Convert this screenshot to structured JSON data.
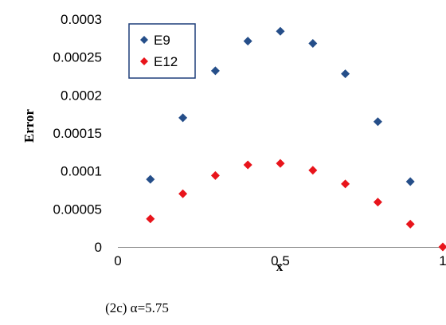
{
  "chart_data": {
    "type": "scatter",
    "title": "",
    "xlabel": "x",
    "ylabel": "Error",
    "xlim": [
      0,
      1
    ],
    "ylim": [
      0,
      0.0003
    ],
    "x_ticks": [
      0,
      0.5,
      1
    ],
    "x_tick_labels": [
      "0",
      "0.5",
      "1"
    ],
    "y_ticks": [
      0,
      5e-05,
      0.0001,
      0.00015,
      0.0002,
      0.00025,
      0.0003
    ],
    "y_tick_labels": [
      "0",
      "0.00005",
      "0.0001",
      "0.00015",
      "0.0002",
      "0.00025",
      "0.0003"
    ],
    "grid": false,
    "legend_position": "top-left",
    "series": [
      {
        "name": "E9",
        "color": "#254E89",
        "marker": "diamond",
        "x": [
          0.1,
          0.2,
          0.3,
          0.4,
          0.5,
          0.6,
          0.7,
          0.8,
          0.9
        ],
        "y": [
          8.9e-05,
          0.00017,
          0.000232,
          0.000271,
          0.000284,
          0.000268,
          0.000228,
          0.000165,
          8.6e-05
        ]
      },
      {
        "name": "E12",
        "color": "#E8141B",
        "marker": "diamond",
        "x": [
          0.1,
          0.2,
          0.3,
          0.4,
          0.5,
          0.6,
          0.7,
          0.8,
          0.9,
          1.0
        ],
        "y": [
          3.7e-05,
          7e-05,
          9.4e-05,
          0.000108,
          0.00011,
          0.000101,
          8.3e-05,
          5.9e-05,
          3e-05,
          0.0
        ]
      }
    ]
  },
  "caption": "(2c) α=5.75"
}
